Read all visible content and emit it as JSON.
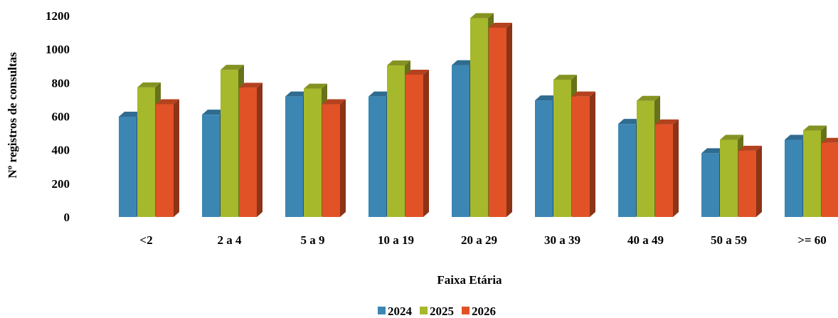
{
  "chart_data": {
    "type": "bar",
    "categories": [
      "<2",
      "2 a 4",
      "5 a 9",
      "10 a 19",
      "20 a 29",
      "30 a 39",
      "40 a 49",
      "50 a 59",
      ">= 60"
    ],
    "series": [
      {
        "name": "2024",
        "color": "#3c86b4",
        "values": [
          598,
          610,
          718,
          718,
          905,
          695,
          555,
          380,
          460
        ]
      },
      {
        "name": "2025",
        "color": "#a6b82b",
        "values": [
          772,
          877,
          765,
          903,
          1185,
          818,
          692,
          460,
          515
        ]
      },
      {
        "name": "2026",
        "color": "#e15227",
        "values": [
          672,
          770,
          672,
          848,
          1128,
          718,
          552,
          395,
          442
        ]
      }
    ],
    "xlabel": "Faixa Etária",
    "ylabel": "Nº registros de consultas",
    "yticks": [
      "0",
      "200",
      "400",
      "600",
      "800",
      "1000",
      "1200"
    ],
    "ylim": [
      0,
      1200
    ],
    "grid": false,
    "legend_position": "bottom",
    "style": "3d-bar"
  }
}
